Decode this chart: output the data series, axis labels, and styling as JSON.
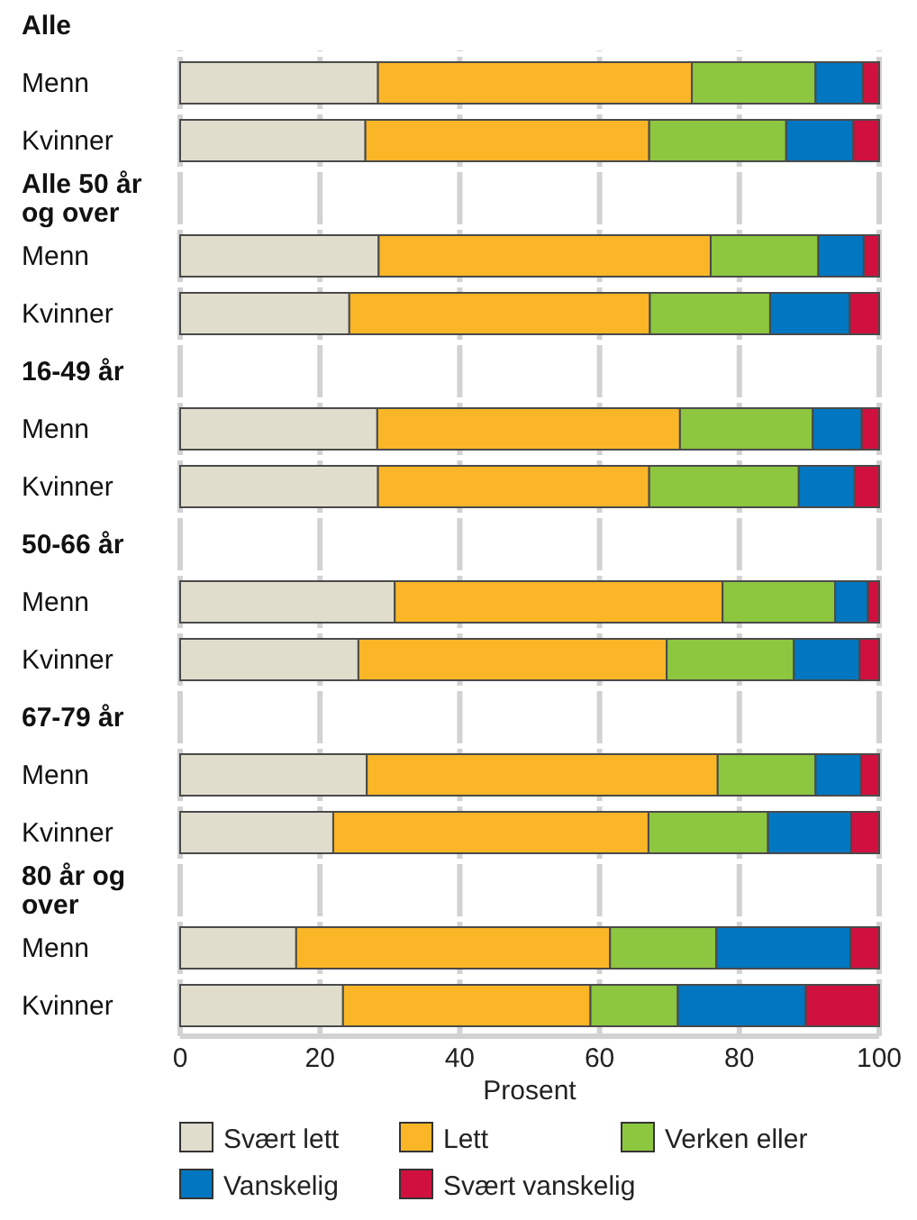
{
  "chart_data": {
    "type": "bar",
    "orientation": "horizontal",
    "stacked": true,
    "xlabel": "Prosent",
    "xlim": [
      0,
      100
    ],
    "xticks": [
      0,
      20,
      40,
      60,
      80,
      100
    ],
    "grid": "x",
    "legend": "bottom",
    "categories": [
      "Alle",
      "Menn",
      "Kvinner",
      "Alle 50 år og over",
      "Menn",
      "Kvinner",
      "16-49 år",
      "Menn",
      "Kvinner",
      "50-66 år",
      "Menn",
      "Kvinner",
      "67-79 år",
      "Menn",
      "Kvinner",
      "80 år og over",
      "Menn",
      "Kvinner"
    ],
    "series": [
      {
        "name": "Svært lett",
        "color": "#e0ddcc",
        "values": [
          null,
          28.3,
          26.5,
          null,
          28.4,
          24.2,
          null,
          28.2,
          28.3,
          null,
          30.7,
          25.5,
          null,
          26.7,
          21.9,
          null,
          16.6,
          23.3
        ]
      },
      {
        "name": "Lett",
        "color": "#fbb627",
        "values": [
          null,
          44.9,
          40.6,
          null,
          47.5,
          43.0,
          null,
          43.3,
          38.8,
          null,
          46.9,
          44.1,
          null,
          50.2,
          45.1,
          null,
          44.9,
          35.4
        ]
      },
      {
        "name": "Verken eller",
        "color": "#8dc63f",
        "values": [
          null,
          17.7,
          19.6,
          null,
          15.4,
          17.2,
          null,
          19.0,
          21.4,
          null,
          16.1,
          18.2,
          null,
          14.0,
          17.1,
          null,
          15.2,
          12.5
        ]
      },
      {
        "name": "Vanskelig",
        "color": "#0077c0",
        "values": [
          null,
          6.8,
          9.6,
          null,
          6.5,
          11.4,
          null,
          7.0,
          8.0,
          null,
          4.7,
          9.4,
          null,
          6.5,
          11.9,
          null,
          19.2,
          18.3
        ]
      },
      {
        "name": "Svært vanskelig",
        "color": "#d0103f",
        "values": [
          null,
          2.3,
          3.7,
          null,
          2.2,
          4.2,
          null,
          2.5,
          3.5,
          null,
          1.6,
          2.8,
          null,
          2.6,
          4.0,
          null,
          4.1,
          10.5
        ]
      }
    ]
  }
}
